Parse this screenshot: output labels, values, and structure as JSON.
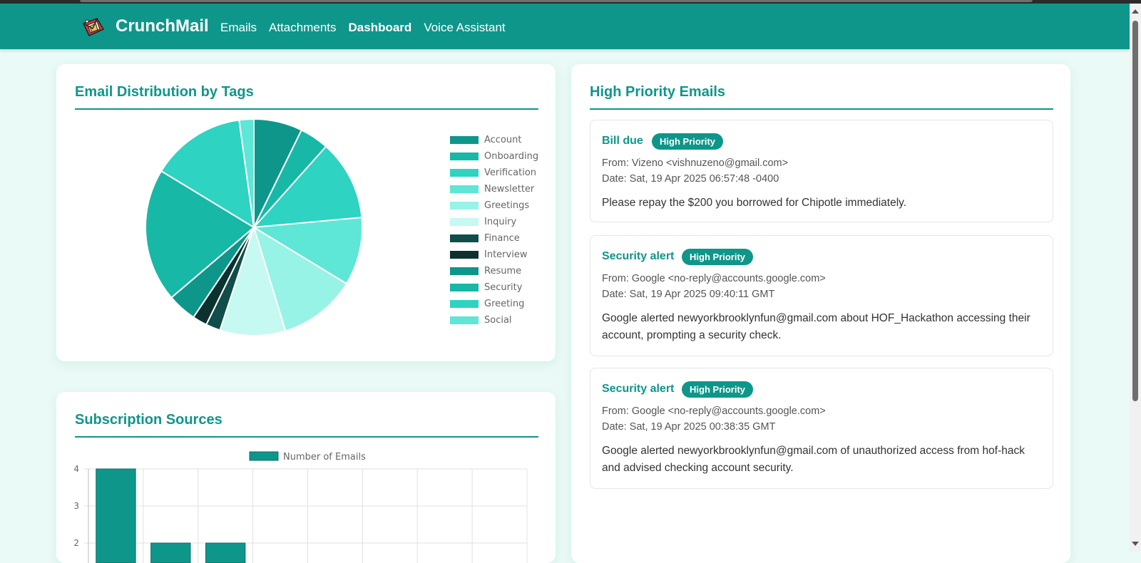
{
  "app": {
    "name": "CrunchMail"
  },
  "nav": {
    "links": [
      "Emails",
      "Attachments",
      "Dashboard",
      "Voice Assistant"
    ],
    "active": "Dashboard"
  },
  "distribution": {
    "title": "Email Distribution by Tags"
  },
  "subscriptions": {
    "title": "Subscription Sources"
  },
  "priority": {
    "title": "High Priority Emails",
    "badge_label": "High Priority",
    "emails": [
      {
        "subject": "Bill due",
        "from": "From: Vizeno <vishnuzeno@gmail.com>",
        "date": "Date: Sat, 19 Apr 2025 06:57:48 -0400",
        "summary": "Please repay the $200 you borrowed for Chipotle immediately."
      },
      {
        "subject": "Security alert",
        "from": "From: Google <no-reply@accounts.google.com>",
        "date": "Date: Sat, 19 Apr 2025 09:40:11 GMT",
        "summary": "Google alerted newyorkbrooklynfun@gmail.com about HOF_Hackathon accessing their account, prompting a security check."
      },
      {
        "subject": "Security alert",
        "from": "From: Google <no-reply@accounts.google.com>",
        "date": "Date: Sat, 19 Apr 2025 00:38:35 GMT",
        "summary": "Google alerted newyorkbrooklynfun@gmail.com of unauthorized access from hof-hack and advised checking account security."
      }
    ]
  },
  "colors": {
    "brand": "#0e968a",
    "background": "#eafaf6"
  },
  "chart_data": [
    {
      "type": "pie",
      "legend_position": "right",
      "slices": [
        {
          "label": "Account",
          "value": 2,
          "color": "#0e968a"
        },
        {
          "label": "Onboarding",
          "value": 1.2,
          "color": "#17b8a6"
        },
        {
          "label": "Verification",
          "value": 3.3,
          "color": "#2ed3c1"
        },
        {
          "label": "Newsletter",
          "value": 2.8,
          "color": "#5ee6d6"
        },
        {
          "label": "Greetings",
          "value": 3.2,
          "color": "#97f3e6"
        },
        {
          "label": "Inquiry",
          "value": 2.7,
          "color": "#c5f9f1"
        },
        {
          "label": "Finance",
          "value": 0.6,
          "color": "#114d4a"
        },
        {
          "label": "Interview",
          "value": 0.6,
          "color": "#0c3230"
        },
        {
          "label": "Resume",
          "value": 1.2,
          "color": "#0e968a"
        },
        {
          "label": "Security",
          "value": 5.5,
          "color": "#17b8a6"
        },
        {
          "label": "Greeting",
          "value": 3.9,
          "color": "#2ed3c1"
        },
        {
          "label": "Social",
          "value": 0.6,
          "color": "#5ee6d6"
        }
      ]
    },
    {
      "type": "bar",
      "legend": [
        "Number of Emails"
      ],
      "legend_position": "top",
      "series": [
        {
          "name": "Number of Emails",
          "values": [
            4,
            2,
            2,
            null,
            null,
            null,
            null,
            null
          ],
          "color": "#0e968a"
        }
      ],
      "y_ticks": [
        4,
        3,
        2
      ],
      "ylim": [
        0,
        4
      ],
      "grid": true
    }
  ]
}
